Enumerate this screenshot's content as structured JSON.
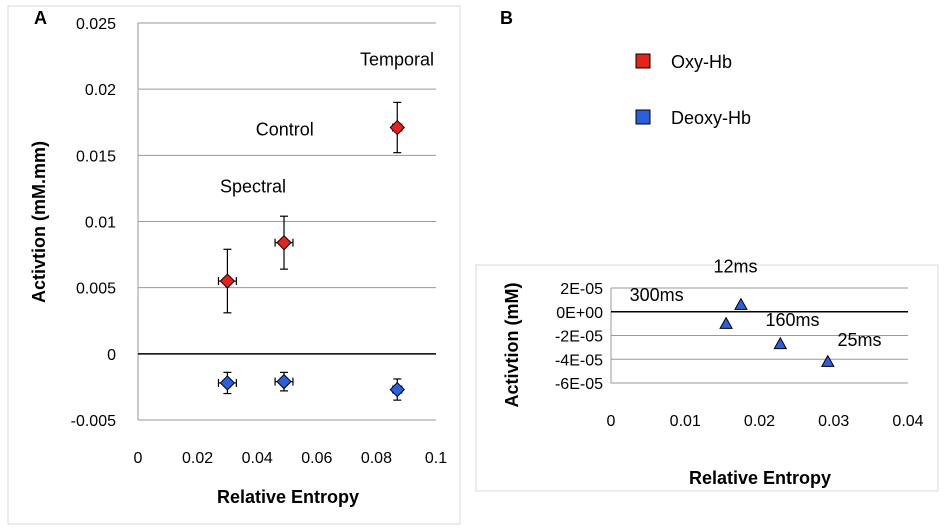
{
  "panels": {
    "a": "A",
    "b": "B"
  },
  "legend": [
    {
      "label": "Oxy-Hb",
      "color": "#e8211b"
    },
    {
      "label": "Deoxy-Hb",
      "color": "#2b5fe3"
    }
  ],
  "chart_data": [
    {
      "type": "scatter",
      "panel": "A",
      "xlabel": "Relative Entropy",
      "ylabel": "Activtion (mM.mm)",
      "xlim": [
        0,
        0.1
      ],
      "ylim": [
        -0.005,
        0.025
      ],
      "xticks": [
        "0",
        "0.02",
        "0.04",
        "0.06",
        "0.08",
        "0.1"
      ],
      "yticks": [
        "-0.005",
        "0",
        "0.005",
        "0.01",
        "0.015",
        "0.02",
        "0.025"
      ],
      "grid": true,
      "series": [
        {
          "name": "Oxy-Hb",
          "color": "#e8211b",
          "x": [
            0.03,
            0.049,
            0.087
          ],
          "y": [
            0.0055,
            0.0084,
            0.0171
          ],
          "yerr": [
            0.0024,
            0.002,
            0.0019
          ],
          "xerr": [
            0.003,
            0.003,
            0.0015
          ]
        },
        {
          "name": "Deoxy-Hb",
          "color": "#2b5fe3",
          "x": [
            0.03,
            0.049,
            0.087
          ],
          "y": [
            -0.0022,
            -0.0021,
            -0.0027
          ],
          "yerr": [
            0.0008,
            0.0007,
            0.0008
          ],
          "xerr": [
            0.003,
            0.003,
            0.0015
          ]
        }
      ],
      "annotations": [
        {
          "text": "Spectral",
          "x": 0.0275,
          "y": 0.0122
        },
        {
          "text": "Control",
          "x": 0.0395,
          "y": 0.0165
        },
        {
          "text": "Temporal",
          "x": 0.0745,
          "y": 0.0218
        }
      ]
    },
    {
      "type": "scatter",
      "panel": "B",
      "xlabel": "Relative Entropy",
      "ylabel": "Activtion (mM)",
      "xlim": [
        0,
        0.04
      ],
      "ylim": [
        -6e-05,
        2e-05
      ],
      "xticks": [
        "0",
        "0.01",
        "0.02",
        "0.03",
        "0.04"
      ],
      "yticks": [
        "-6E-05",
        "-4E-05",
        "-2E-05",
        "0E+00",
        "2E-05"
      ],
      "grid": true,
      "series": [
        {
          "name": "Deoxy-Hb",
          "color": "#2b5fe3",
          "marker": "triangle",
          "x": [
            0.0155,
            0.0175,
            0.0228,
            0.0292
          ],
          "y": [
            -1e-05,
            6e-06,
            -2.7e-05,
            -4.2e-05
          ]
        }
      ],
      "annotations": [
        {
          "text": "12ms",
          "x": 0.0138,
          "y": 3.3e-05
        },
        {
          "text": "300ms",
          "x": 0.0025,
          "y": 9e-06
        },
        {
          "text": "160ms",
          "x": 0.0208,
          "y": -1.2e-05
        },
        {
          "text": "25ms",
          "x": 0.0305,
          "y": -2.9e-05
        }
      ]
    }
  ]
}
